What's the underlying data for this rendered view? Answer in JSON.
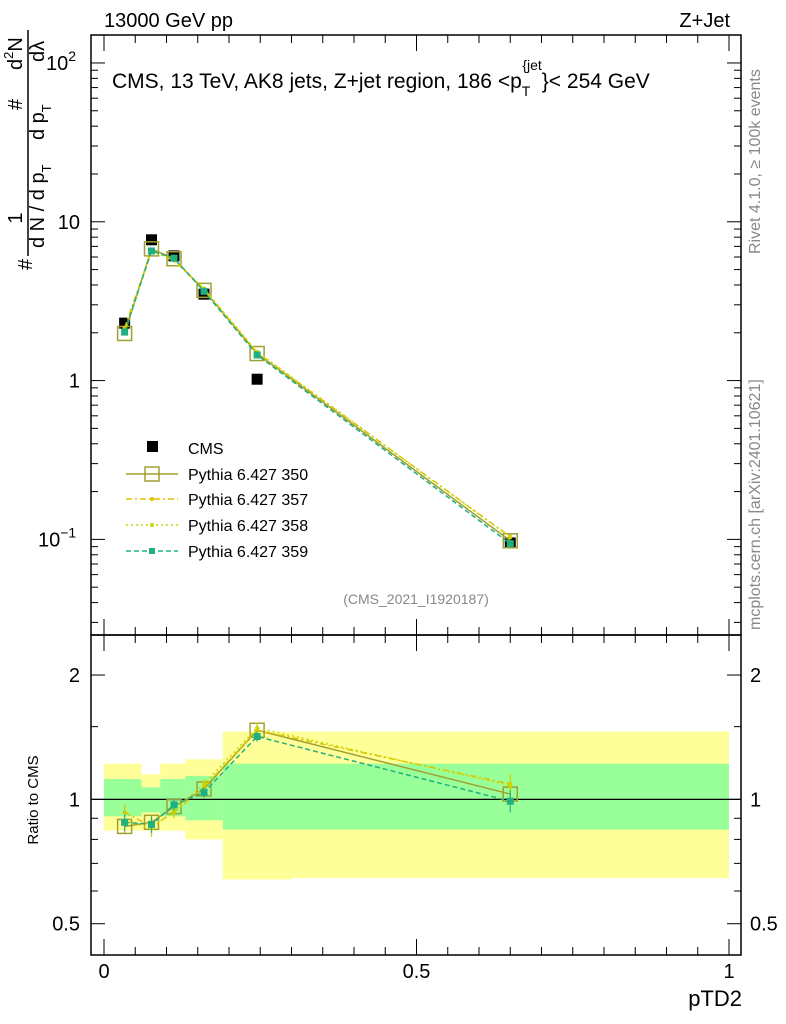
{
  "header": {
    "left": "13000 GeV pp",
    "right": "Z+Jet"
  },
  "side": {
    "rivet": "Rivet 4.1.0, ≥ 100k events",
    "mcplots": "mcplots.cern.ch [arXiv:2401.10621]"
  },
  "colors": {
    "cms": "#000000",
    "p350": "#a0a030",
    "p357": "#e0c000",
    "p358": "#c8d800",
    "p359": "#20b080",
    "band_outer": "#ffff99",
    "band_inner": "#99ff99"
  },
  "chart_data": [
    {
      "type": "line",
      "title": "CMS, 13 TeV, AK8 jets, Z+jet region, 186 <p_T^{jet}> < 254 GeV",
      "title_parts": {
        "a": "CMS, 13 TeV, AK8 jets, Z+jet region, 186 <p",
        "sub": "T",
        "sup": "{jet",
        "b": "}< 254 GeV"
      },
      "ylabel_parts": [
        "#",
        "1",
        "d N / d p",
        "T",
        "#",
        "d p",
        "T",
        "d",
        "2",
        "N",
        "dλ"
      ],
      "yscale": "log",
      "ylim": [
        0.025,
        150
      ],
      "xlim": [
        0,
        1
      ],
      "yticks": [
        {
          "value": 100,
          "label": "10",
          "sup": "2"
        },
        {
          "value": 10,
          "label": "10",
          "sup": ""
        },
        {
          "value": 1,
          "label": "1",
          "sup": ""
        },
        {
          "value": 0.1,
          "label": "10",
          "sup": "−1"
        }
      ],
      "watermark": "(CMS_2021_I1920187)",
      "legend": [
        "CMS",
        "Pythia 6.427 350",
        "Pythia 6.427 357",
        "Pythia 6.427 358",
        "Pythia 6.427 359"
      ],
      "x": [
        0.033,
        0.076,
        0.112,
        0.16,
        0.245,
        0.65
      ],
      "series": [
        {
          "name": "CMS",
          "values": [
            2.3,
            7.7,
            6.1,
            3.5,
            1.02,
            0.095
          ]
        },
        {
          "name": "Pythia 6.427 350",
          "values": [
            1.98,
            6.75,
            5.85,
            3.7,
            1.48,
            0.098
          ]
        },
        {
          "name": "Pythia 6.427 357",
          "values": [
            2.15,
            6.6,
            5.7,
            3.75,
            1.5,
            0.104
          ]
        },
        {
          "name": "Pythia 6.427 358",
          "values": [
            2.05,
            6.55,
            5.75,
            3.8,
            1.52,
            0.103
          ]
        },
        {
          "name": "Pythia 6.427 359",
          "values": [
            2.02,
            6.55,
            5.9,
            3.65,
            1.45,
            0.094
          ]
        }
      ]
    },
    {
      "type": "line",
      "ylabel": "Ratio to CMS",
      "xlabel": "pTD2",
      "yscale": "log",
      "ylim": [
        0.42,
        2.5
      ],
      "xlim": [
        0,
        1
      ],
      "yticks": [
        {
          "value": 2,
          "label": "2"
        },
        {
          "value": 1,
          "label": "1"
        },
        {
          "value": 0.5,
          "label": "0.5"
        }
      ],
      "xticks": [
        {
          "value": 0,
          "label": "0"
        },
        {
          "value": 0.5,
          "label": "0.5"
        },
        {
          "value": 1,
          "label": "1"
        }
      ],
      "bands": [
        {
          "x0": 0.0,
          "x1": 0.06,
          "outer": [
            0.84,
            1.22
          ],
          "inner": [
            0.91,
            1.12
          ]
        },
        {
          "x0": 0.06,
          "x1": 0.09,
          "outer": [
            0.84,
            1.15
          ],
          "inner": [
            0.93,
            1.07
          ]
        },
        {
          "x0": 0.09,
          "x1": 0.13,
          "outer": [
            0.84,
            1.22
          ],
          "inner": [
            0.91,
            1.12
          ]
        },
        {
          "x0": 0.13,
          "x1": 0.19,
          "outer": [
            0.8,
            1.25
          ],
          "inner": [
            0.89,
            1.14
          ]
        },
        {
          "x0": 0.19,
          "x1": 0.3,
          "outer": [
            0.64,
            1.46
          ],
          "inner": [
            0.845,
            1.22
          ]
        },
        {
          "x0": 0.3,
          "x1": 1.0,
          "outer": [
            0.645,
            1.46
          ],
          "inner": [
            0.845,
            1.22
          ]
        }
      ],
      "x": [
        0.033,
        0.076,
        0.112,
        0.16,
        0.245,
        0.65
      ],
      "series": [
        {
          "name": "Pythia 6.427 350",
          "values": [
            0.86,
            0.88,
            0.96,
            1.06,
            1.47,
            1.03
          ],
          "err": [
            0.03,
            0.03,
            0.03,
            0.03,
            0.04,
            0.05
          ]
        },
        {
          "name": "Pythia 6.427 357",
          "values": [
            0.93,
            0.86,
            0.93,
            1.07,
            1.47,
            1.09
          ],
          "err": [
            0.04,
            0.04,
            0.03,
            0.03,
            0.04,
            0.06
          ]
        },
        {
          "name": "Pythia 6.427 358",
          "values": [
            0.89,
            0.85,
            0.94,
            1.09,
            1.49,
            1.08
          ],
          "err": [
            0.04,
            0.04,
            0.03,
            0.03,
            0.04,
            0.06
          ]
        },
        {
          "name": "Pythia 6.427 359",
          "values": [
            0.88,
            0.87,
            0.97,
            1.04,
            1.42,
            0.99
          ],
          "err": [
            0.04,
            0.04,
            0.03,
            0.03,
            0.04,
            0.06
          ]
        }
      ]
    }
  ]
}
